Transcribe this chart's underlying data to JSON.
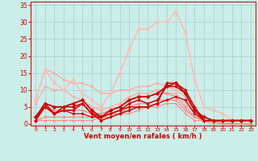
{
  "background_color": "#cceee8",
  "grid_color": "#aacccc",
  "x_label": "Vent moyen/en rafales ( km/h )",
  "x_ticks": [
    0,
    1,
    2,
    3,
    4,
    5,
    6,
    7,
    8,
    9,
    10,
    11,
    12,
    13,
    14,
    15,
    16,
    17,
    18,
    19,
    20,
    21,
    22,
    23
  ],
  "y_ticks": [
    0,
    5,
    10,
    15,
    20,
    25,
    30,
    35
  ],
  "ylim": [
    -0.5,
    36
  ],
  "xlim": [
    -0.5,
    23.5
  ],
  "series": [
    {
      "x": [
        0,
        1,
        2,
        3,
        4,
        5,
        6,
        7,
        8,
        9,
        10,
        11,
        12,
        13,
        14,
        15,
        16,
        17,
        18,
        19,
        20,
        21,
        22,
        23
      ],
      "y": [
        7,
        16,
        15,
        13,
        12,
        12,
        11,
        9,
        9,
        10,
        10,
        11,
        11,
        12,
        11,
        10,
        8,
        3,
        2,
        1,
        1,
        0,
        0,
        0
      ],
      "color": "#ffaaaa",
      "lw": 1.0,
      "marker": "o",
      "ms": 2.0
    },
    {
      "x": [
        0,
        1,
        2,
        3,
        4,
        5,
        6,
        7,
        8,
        9,
        10,
        11,
        12,
        13,
        14,
        15,
        16,
        17,
        18,
        19,
        20,
        21,
        22,
        23
      ],
      "y": [
        6,
        11,
        10,
        10,
        8,
        7,
        5,
        4,
        5,
        6,
        8,
        9,
        9,
        10,
        9,
        9,
        6,
        3,
        1,
        1,
        1,
        0,
        0,
        0
      ],
      "color": "#ffaaaa",
      "lw": 1.0,
      "marker": "o",
      "ms": 2.0
    },
    {
      "x": [
        0,
        1,
        2,
        3,
        4,
        5,
        6,
        7,
        8,
        9,
        10,
        11,
        12,
        13,
        14,
        15,
        16,
        17,
        18,
        19,
        20,
        21,
        22,
        23
      ],
      "y": [
        7,
        16,
        12,
        10,
        13,
        9,
        7,
        5,
        9,
        15,
        22,
        28,
        28,
        30,
        30,
        33,
        27,
        13,
        5,
        4,
        3,
        1,
        1,
        1
      ],
      "color": "#ffbbbb",
      "lw": 1.2,
      "marker": "o",
      "ms": 2.5
    },
    {
      "x": [
        0,
        1,
        2,
        3,
        4,
        5,
        6,
        7,
        8,
        9,
        10,
        11,
        12,
        13,
        14,
        15,
        16,
        17,
        18,
        19,
        20,
        21,
        22,
        23
      ],
      "y": [
        2,
        5,
        4,
        4,
        4,
        4,
        3,
        3,
        4,
        5,
        7,
        8,
        8,
        9,
        9,
        8,
        5,
        2,
        1,
        1,
        0,
        0,
        0,
        0
      ],
      "color": "#ff8888",
      "lw": 1.0,
      "marker": "o",
      "ms": 2.0
    },
    {
      "x": [
        0,
        1,
        2,
        3,
        4,
        5,
        6,
        7,
        8,
        9,
        10,
        11,
        12,
        13,
        14,
        15,
        16,
        17,
        18,
        19,
        20,
        21,
        22,
        23
      ],
      "y": [
        1,
        2,
        2,
        2,
        2,
        2,
        2,
        2,
        3,
        3,
        5,
        6,
        6,
        7,
        7,
        7,
        4,
        2,
        1,
        1,
        0,
        0,
        0,
        0
      ],
      "color": "#ff8888",
      "lw": 0.9,
      "marker": "o",
      "ms": 1.8
    },
    {
      "x": [
        0,
        1,
        2,
        3,
        4,
        5,
        6,
        7,
        8,
        9,
        10,
        11,
        12,
        13,
        14,
        15,
        16,
        17,
        18,
        19,
        20,
        21,
        22,
        23
      ],
      "y": [
        1,
        1,
        1,
        1,
        1,
        1,
        1,
        2,
        2,
        3,
        3,
        4,
        5,
        5,
        6,
        6,
        3,
        1,
        1,
        0,
        0,
        0,
        0,
        0
      ],
      "color": "#ff8888",
      "lw": 0.8,
      "marker": "o",
      "ms": 1.5
    },
    {
      "x": [
        0,
        1,
        2,
        3,
        4,
        5,
        6,
        7,
        8,
        9,
        10,
        11,
        12,
        13,
        14,
        15,
        16,
        17,
        18,
        19,
        20,
        21,
        22,
        23
      ],
      "y": [
        2,
        6,
        5,
        5,
        6,
        7,
        4,
        2,
        4,
        5,
        7,
        8,
        8,
        9,
        11,
        12,
        9,
        4,
        2,
        1,
        1,
        1,
        1,
        1
      ],
      "color": "#cc0000",
      "lw": 1.3,
      "marker": "D",
      "ms": 2.5
    },
    {
      "x": [
        0,
        1,
        2,
        3,
        4,
        5,
        6,
        7,
        8,
        9,
        10,
        11,
        12,
        13,
        14,
        15,
        16,
        17,
        18,
        19,
        20,
        21,
        22,
        23
      ],
      "y": [
        1,
        5,
        3,
        4,
        4,
        6,
        3,
        1,
        2,
        3,
        4,
        5,
        5,
        6,
        12,
        12,
        10,
        5,
        1,
        1,
        1,
        1,
        1,
        1
      ],
      "color": "#cc0000",
      "lw": 1.1,
      "marker": "D",
      "ms": 2.0
    },
    {
      "x": [
        0,
        1,
        2,
        3,
        4,
        5,
        6,
        7,
        8,
        9,
        10,
        11,
        12,
        13,
        14,
        15,
        16,
        17,
        18,
        19,
        20,
        21,
        22,
        23
      ],
      "y": [
        1,
        6,
        3,
        5,
        5,
        6,
        3,
        2,
        3,
        4,
        6,
        7,
        6,
        7,
        11,
        11,
        9,
        4,
        1,
        1,
        1,
        1,
        1,
        1
      ],
      "color": "#cc0000",
      "lw": 1.1,
      "marker": "D",
      "ms": 2.0
    },
    {
      "x": [
        0,
        1,
        2,
        3,
        4,
        5,
        6,
        7,
        8,
        9,
        10,
        11,
        12,
        13,
        14,
        15,
        16,
        17,
        18,
        19,
        20,
        21,
        22,
        23
      ],
      "y": [
        2,
        5,
        3,
        4,
        3,
        3,
        2,
        2,
        3,
        4,
        5,
        5,
        5,
        6,
        7,
        8,
        7,
        3,
        1,
        1,
        1,
        1,
        1,
        1
      ],
      "color": "#cc0000",
      "lw": 0.9,
      "marker": "D",
      "ms": 1.8
    }
  ]
}
